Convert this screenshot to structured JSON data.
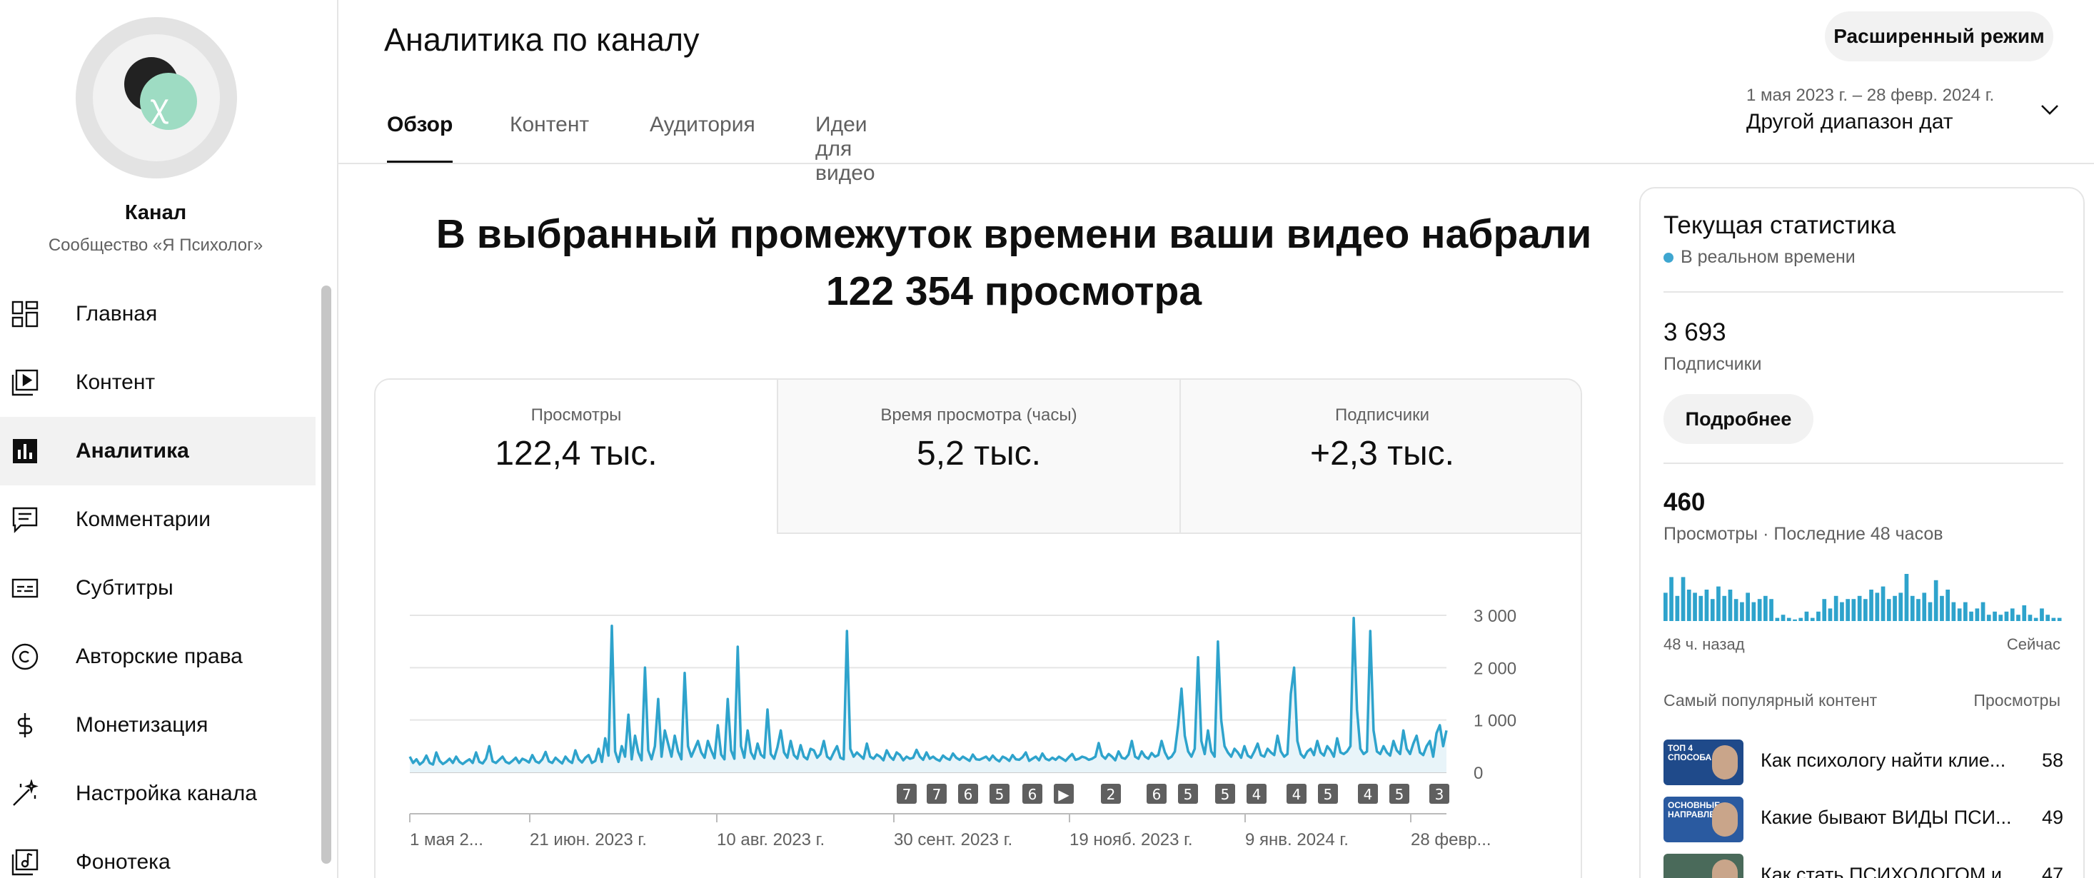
{
  "sidebar": {
    "channel_name": "Канал",
    "channel_subtitle": "Сообщество «Я Психолог»",
    "items": [
      {
        "label": "Главная",
        "icon": "dashboard-icon"
      },
      {
        "label": "Контент",
        "icon": "content-icon"
      },
      {
        "label": "Аналитика",
        "icon": "analytics-icon",
        "active": true
      },
      {
        "label": "Комментарии",
        "icon": "comments-icon"
      },
      {
        "label": "Субтитры",
        "icon": "subtitles-icon"
      },
      {
        "label": "Авторские права",
        "icon": "copyright-icon"
      },
      {
        "label": "Монетизация",
        "icon": "dollar-icon"
      },
      {
        "label": "Настройка канала",
        "icon": "wand-icon"
      },
      {
        "label": "Фонотека",
        "icon": "audio-library-icon"
      }
    ]
  },
  "header": {
    "title": "Аналитика по каналу",
    "advanced_mode": "Расширенный режим",
    "tabs": [
      {
        "label": "Обзор",
        "active": true
      },
      {
        "label": "Контент"
      },
      {
        "label": "Аудитория"
      },
      {
        "label": "Идеи для видео"
      }
    ],
    "date_range": "1 мая 2023 г. – 28 февр. 2024 г.",
    "date_preset": "Другой диапазон дат"
  },
  "main": {
    "headline": "В выбранный промежуток времени ваши видео набрали 122 354 просмотра",
    "metrics": [
      {
        "label": "Просмотры",
        "value": "122,4 тыс."
      },
      {
        "label": "Время просмотра (часы)",
        "value": "5,2 тыс."
      },
      {
        "label": "Подписчики",
        "value": "+2,3 тыс."
      }
    ],
    "video_markers": [
      "7",
      "7",
      "6",
      "5",
      "6",
      "▶",
      "2",
      "6",
      "5",
      "5",
      "4",
      "4",
      "5",
      "4",
      "5",
      "3"
    ]
  },
  "chart_data": {
    "type": "line",
    "title": "",
    "xlabel": "",
    "ylabel": "",
    "x_ticks": [
      "1 мая 2...",
      "21 июн. 2023 г.",
      "10 авг. 2023 г.",
      "30 сент. 2023 г.",
      "19 нояб. 2023 г.",
      "9 янв. 2024 г.",
      "28 февр..."
    ],
    "y_ticks": [
      "3 000",
      "2 000",
      "1 000",
      "0"
    ],
    "ylim": [
      0,
      3000
    ],
    "grid": true,
    "color": "#2ea3cc",
    "series": [
      {
        "values": [
          300,
          180,
          250,
          150,
          200,
          320,
          180,
          150,
          380,
          220,
          160,
          200,
          260,
          180,
          300,
          200,
          160,
          210,
          250,
          180,
          380,
          200,
          170,
          260,
          500,
          210,
          180,
          240,
          300,
          200,
          170,
          220,
          280,
          180,
          260,
          230,
          190,
          330,
          210,
          180,
          250,
          390,
          210,
          180,
          280,
          220,
          170,
          300,
          220,
          180,
          420,
          250,
          190,
          280,
          330,
          180,
          220,
          450,
          200,
          650,
          320,
          2800,
          400,
          200,
          500,
          300,
          1100,
          250,
          700,
          380,
          230,
          2000,
          420,
          250,
          500,
          1400,
          300,
          800,
          550,
          300,
          700,
          400,
          250,
          1900,
          500,
          300,
          450,
          600,
          380,
          280,
          600,
          420,
          270,
          900,
          340,
          250,
          1400,
          420,
          260,
          2400,
          500,
          280,
          800,
          380,
          260,
          550,
          340,
          280,
          1200,
          350,
          260,
          480,
          800,
          380,
          280,
          600,
          330,
          260,
          520,
          300,
          250,
          450,
          420,
          280,
          350,
          600,
          300,
          250,
          380,
          500,
          280,
          250,
          2700,
          450,
          300,
          380,
          320,
          260,
          550,
          300,
          260,
          340,
          300,
          230,
          420,
          300,
          240,
          380,
          330,
          230,
          300,
          260,
          280,
          430,
          300,
          240,
          380,
          260,
          300,
          250,
          220,
          320,
          270,
          240,
          360,
          280,
          240,
          300,
          260,
          220,
          340,
          250,
          240,
          270,
          300,
          230,
          320,
          250,
          210,
          300,
          270,
          220,
          330,
          250,
          240,
          290,
          380,
          220,
          260,
          300,
          230,
          360,
          260,
          230,
          280,
          240,
          300,
          260,
          220,
          290,
          350,
          240,
          260,
          300,
          280,
          240,
          260,
          300,
          560,
          320,
          260,
          350,
          300,
          230,
          400,
          280,
          260,
          340,
          600,
          300,
          260,
          400,
          300,
          260,
          370,
          300,
          330,
          600,
          380,
          260,
          300,
          400,
          900,
          1600,
          700,
          400,
          300,
          450,
          2200,
          600,
          350,
          800,
          400,
          300,
          2500,
          1000,
          500,
          380,
          300,
          450,
          380,
          280,
          500,
          320,
          280,
          400,
          550,
          330,
          300,
          450,
          380,
          330,
          700,
          400,
          300,
          350,
          1500,
          2000,
          600,
          350,
          280,
          400,
          450,
          330,
          600,
          380,
          320,
          500,
          420,
          300,
          650,
          380,
          350,
          400,
          500,
          2950,
          1200,
          450,
          350,
          400,
          2700,
          800,
          400,
          350,
          500,
          380,
          320,
          600,
          420,
          350,
          800,
          450,
          350,
          550,
          700,
          380,
          330,
          500,
          600,
          300,
          750,
          900,
          500,
          800
        ]
      }
    ]
  },
  "right_panel": {
    "title": "Текущая статистика",
    "live": "В реальном времени",
    "subs_value": "3 693",
    "subs_label": "Подписчики",
    "more_button": "Подробнее",
    "views_value": "460",
    "views_label": "Просмотры · Последние 48 часов",
    "spark_values": [
      18,
      28,
      16,
      28,
      20,
      18,
      16,
      20,
      14,
      22,
      16,
      20,
      14,
      12,
      18,
      12,
      14,
      16,
      14,
      2,
      4,
      2,
      1,
      2,
      6,
      2,
      6,
      14,
      8,
      16,
      12,
      14,
      14,
      16,
      14,
      20,
      18,
      22,
      14,
      16,
      18,
      30,
      16,
      14,
      18,
      12,
      26,
      16,
      20,
      12,
      8,
      12,
      6,
      8,
      12,
      4,
      6,
      4,
      6,
      8,
      4,
      10,
      4,
      2,
      8,
      4,
      2,
      2
    ],
    "left_label": "48 ч. назад",
    "right_label": "Сейчас",
    "top_label": "Самый популярный контент",
    "top_col": "Просмотры",
    "top_items": [
      {
        "title": "Как психологу найти клие...",
        "views": "58",
        "thumb_text": "ТОП 4 СПОСОБА"
      },
      {
        "title": "Какие бывают ВИДЫ ПСИ...",
        "views": "49",
        "thumb_text": "ОСНОВНЫЕ НАПРАВЛЕНИЯ"
      },
      {
        "title": "Как стать ПСИХОЛОГОМ и...",
        "views": "47",
        "thumb_text": ""
      }
    ]
  }
}
